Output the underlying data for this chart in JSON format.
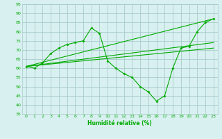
{
  "xlabel": "Humidité relative (%)",
  "bg_color": "#d8f0f0",
  "grid_color": "#aacccc",
  "line_color": "#00aa00",
  "xlim": [
    -0.5,
    23.5
  ],
  "ylim": [
    35,
    95
  ],
  "yticks": [
    35,
    40,
    45,
    50,
    55,
    60,
    65,
    70,
    75,
    80,
    85,
    90,
    95
  ],
  "xticks": [
    0,
    1,
    2,
    3,
    4,
    5,
    6,
    7,
    8,
    9,
    10,
    11,
    12,
    13,
    14,
    15,
    16,
    17,
    18,
    19,
    20,
    21,
    22,
    23
  ],
  "line1": {
    "x": [
      0,
      1,
      2,
      3,
      4,
      5,
      6,
      7,
      8,
      9,
      10,
      11,
      12,
      13,
      14,
      15,
      16,
      17,
      18,
      19,
      20,
      21,
      22,
      23
    ],
    "y": [
      61,
      60,
      63,
      68,
      71,
      73,
      74,
      75,
      82,
      79,
      64,
      60,
      57,
      55,
      50,
      47,
      42,
      45,
      60,
      71,
      72,
      80,
      85,
      87
    ]
  },
  "line2": {
    "x": [
      0,
      23
    ],
    "y": [
      61,
      71
    ]
  },
  "line3": {
    "x": [
      0,
      23
    ],
    "y": [
      61,
      74
    ]
  },
  "line4": {
    "x": [
      0,
      23
    ],
    "y": [
      61,
      87
    ]
  }
}
